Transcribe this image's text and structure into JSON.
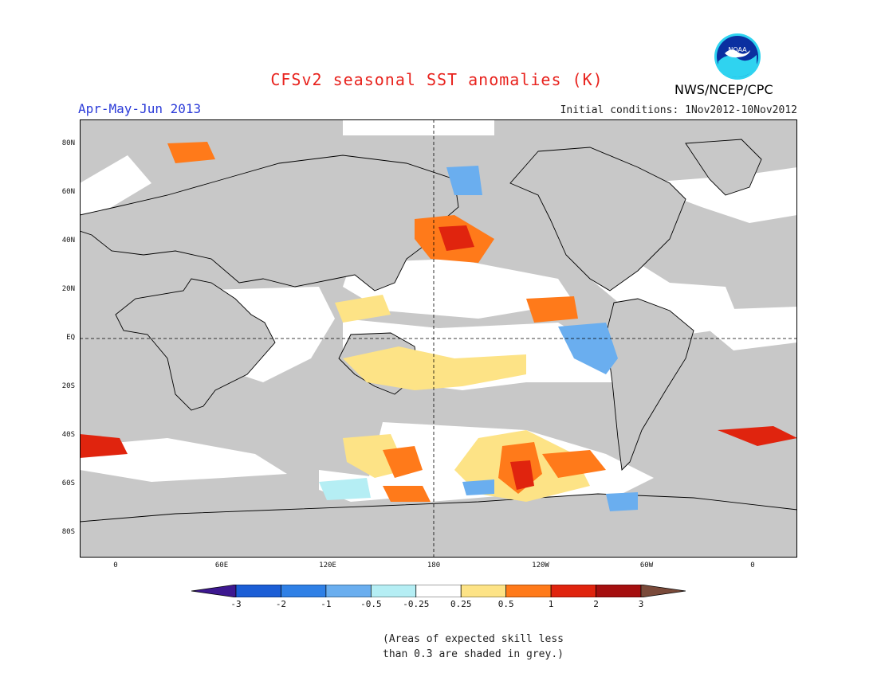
{
  "title": "CFSv2 seasonal SST anomalies (K)",
  "period": "Apr-May-Jun 2013",
  "initial_conditions": "Initial conditions: 1Nov2012-10Nov2012",
  "organization": "NWS/NCEP/CPC",
  "logo": {
    "text": "NOAA",
    "icon": "noaa-logo"
  },
  "axes": {
    "lat_labels": [
      "80N",
      "60N",
      "40N",
      "20N",
      "EQ",
      "20S",
      "40S",
      "60S",
      "80S"
    ],
    "lon_labels": [
      "0",
      "60E",
      "120E",
      "180",
      "120W",
      "60W",
      "0"
    ]
  },
  "colorbar": {
    "labels": [
      "-3",
      "-2",
      "-1",
      "-0.5",
      "-0.25",
      "0.25",
      "0.5",
      "1",
      "2",
      "3"
    ],
    "colors": [
      "#3d1890",
      "#1b5ed6",
      "#2f80e6",
      "#6aaeef",
      "#b5eef4",
      "#ffffff",
      "#fde386",
      "#ff7a1a",
      "#e0240e",
      "#a50f0f",
      "#7a4a3a"
    ]
  },
  "note_lines": [
    "(Areas of expected skill less",
    "than 0.3 are shaded in grey.)"
  ],
  "map_colors": {
    "ocean_low_skill": "#c8c8c8",
    "land": "#ffffff"
  }
}
